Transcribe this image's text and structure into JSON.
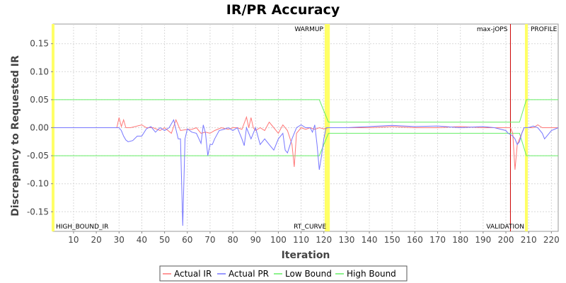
{
  "chart_data": {
    "type": "line",
    "title": "IR/PR Accuracy",
    "xlabel": "Iteration",
    "ylabel": "Discrepancy to Requested IR",
    "xlim": [
      1,
      223
    ],
    "ylim": [
      -0.185,
      0.185
    ],
    "x_ticks": [
      10,
      20,
      30,
      40,
      50,
      60,
      70,
      80,
      90,
      100,
      110,
      120,
      130,
      140,
      150,
      160,
      170,
      180,
      190,
      200,
      210,
      220
    ],
    "y_ticks": [
      0.15,
      0.1,
      0.05,
      0.0,
      -0.05,
      -0.1,
      -0.15
    ],
    "y_tick_labels": [
      "0.15",
      "0.10",
      "0.05",
      "0.00",
      "-0.05",
      "-0.10",
      "-0.15"
    ],
    "grid": true,
    "legend_position": "bottom",
    "markers": [
      {
        "label": "HIGH_BOUND_IR",
        "x": 1,
        "color": "#ffff66",
        "label_position": "bottom-right"
      },
      {
        "label": "WARMUP",
        "x": 121,
        "color": "#ffff66",
        "label_position": "top-left"
      },
      {
        "label": "RT_CURVE",
        "x": 122,
        "color": "#ffff66",
        "label_position": "bottom-left"
      },
      {
        "label": "max-jOPS",
        "x": 202,
        "color": "#cc0000",
        "label_position": "top-left"
      },
      {
        "label": "VALIDATION",
        "x": 209,
        "color": "#ffff66",
        "label_position": "bottom-left"
      },
      {
        "label": "PROFILE",
        "x": 209,
        "color": "#ffff66",
        "label_position": "top-right"
      }
    ],
    "series": [
      {
        "name": "Actual IR",
        "color": "#ff7777",
        "x": [
          1,
          29,
          30,
          31,
          32,
          33,
          35,
          40,
          42,
          45,
          48,
          50,
          53,
          55,
          57,
          60,
          62,
          64,
          66,
          68,
          70,
          72,
          75,
          78,
          80,
          82,
          84,
          86,
          87,
          88,
          89,
          90,
          92,
          94,
          96,
          98,
          100,
          102,
          104,
          106,
          107,
          108,
          110,
          112,
          114,
          116,
          118,
          120,
          122,
          130,
          140,
          150,
          160,
          170,
          180,
          190,
          195,
          200,
          202,
          203,
          204,
          205,
          206,
          208,
          210,
          212,
          214,
          216,
          218,
          220,
          223
        ],
        "values": [
          0.0,
          0.0,
          0.018,
          0.002,
          0.014,
          0.0,
          0.0,
          0.005,
          0.0,
          0.0,
          -0.005,
          0.0,
          -0.01,
          0.014,
          -0.005,
          -0.003,
          -0.003,
          0.0,
          -0.01,
          -0.008,
          -0.01,
          -0.005,
          0.0,
          -0.003,
          0.0,
          0.0,
          -0.003,
          0.019,
          0.0,
          0.018,
          0.0,
          -0.005,
          0.0,
          -0.005,
          0.01,
          0.0,
          -0.01,
          0.005,
          -0.005,
          -0.03,
          -0.07,
          -0.01,
          0.0,
          -0.003,
          0.0,
          -0.003,
          0.0,
          -0.002,
          0.0,
          0.0,
          0.0,
          0.002,
          0.0,
          0.0,
          0.002,
          0.0,
          0.0,
          0.0,
          0.0,
          -0.01,
          -0.075,
          -0.03,
          -0.02,
          0.0,
          0.0,
          0.0,
          0.005,
          0.0,
          0.0,
          0.0,
          0.0
        ]
      },
      {
        "name": "Actual PR",
        "color": "#7777ff",
        "x": [
          1,
          30,
          31,
          32,
          33,
          34,
          36,
          38,
          40,
          42,
          44,
          46,
          48,
          50,
          52,
          54,
          56,
          57,
          58,
          59,
          60,
          62,
          64,
          66,
          67,
          68,
          69,
          70,
          71,
          72,
          74,
          76,
          78,
          80,
          82,
          84,
          85,
          86,
          88,
          90,
          92,
          93,
          94,
          96,
          98,
          100,
          102,
          103,
          104,
          106,
          108,
          110,
          112,
          114,
          115,
          116,
          117,
          118,
          119,
          120,
          121,
          122,
          130,
          140,
          150,
          160,
          170,
          180,
          190,
          195,
          200,
          201,
          202,
          203,
          204,
          205,
          206,
          207,
          208,
          210,
          212,
          214,
          216,
          217,
          218,
          220,
          223
        ],
        "values": [
          0.0,
          0.0,
          -0.005,
          -0.015,
          -0.022,
          -0.025,
          -0.023,
          -0.015,
          -0.015,
          -0.002,
          0.002,
          -0.008,
          0.0,
          -0.005,
          0.0,
          0.014,
          -0.02,
          -0.02,
          -0.175,
          -0.02,
          -0.002,
          -0.008,
          -0.01,
          -0.028,
          0.005,
          -0.01,
          -0.05,
          -0.03,
          -0.03,
          -0.02,
          -0.005,
          -0.003,
          0.0,
          -0.005,
          0.0,
          -0.02,
          -0.032,
          0.0,
          -0.02,
          0.0,
          -0.03,
          -0.025,
          -0.02,
          -0.03,
          -0.04,
          -0.02,
          -0.01,
          -0.04,
          -0.045,
          -0.02,
          0.0,
          0.005,
          0.0,
          0.0,
          -0.008,
          0.005,
          -0.03,
          -0.075,
          -0.05,
          -0.02,
          0.0,
          0.0,
          0.0,
          0.002,
          0.004,
          0.002,
          0.003,
          0.0,
          0.002,
          0.0,
          -0.005,
          -0.01,
          -0.012,
          -0.015,
          -0.02,
          -0.03,
          -0.025,
          -0.01,
          0.0,
          0.0,
          0.003,
          0.0,
          -0.01,
          -0.02,
          -0.015,
          -0.005,
          0.0
        ]
      },
      {
        "name": "Low Bound",
        "color": "#66ee66",
        "x": [
          1,
          118,
          122,
          202,
          206,
          209,
          223
        ],
        "values": [
          -0.05,
          -0.05,
          -0.01,
          -0.01,
          -0.01,
          -0.05,
          -0.05
        ]
      },
      {
        "name": "High Bound",
        "color": "#66ee66",
        "x": [
          1,
          118,
          122,
          202,
          206,
          209,
          223
        ],
        "values": [
          0.05,
          0.05,
          0.01,
          0.01,
          0.01,
          0.05,
          0.05
        ]
      }
    ]
  }
}
